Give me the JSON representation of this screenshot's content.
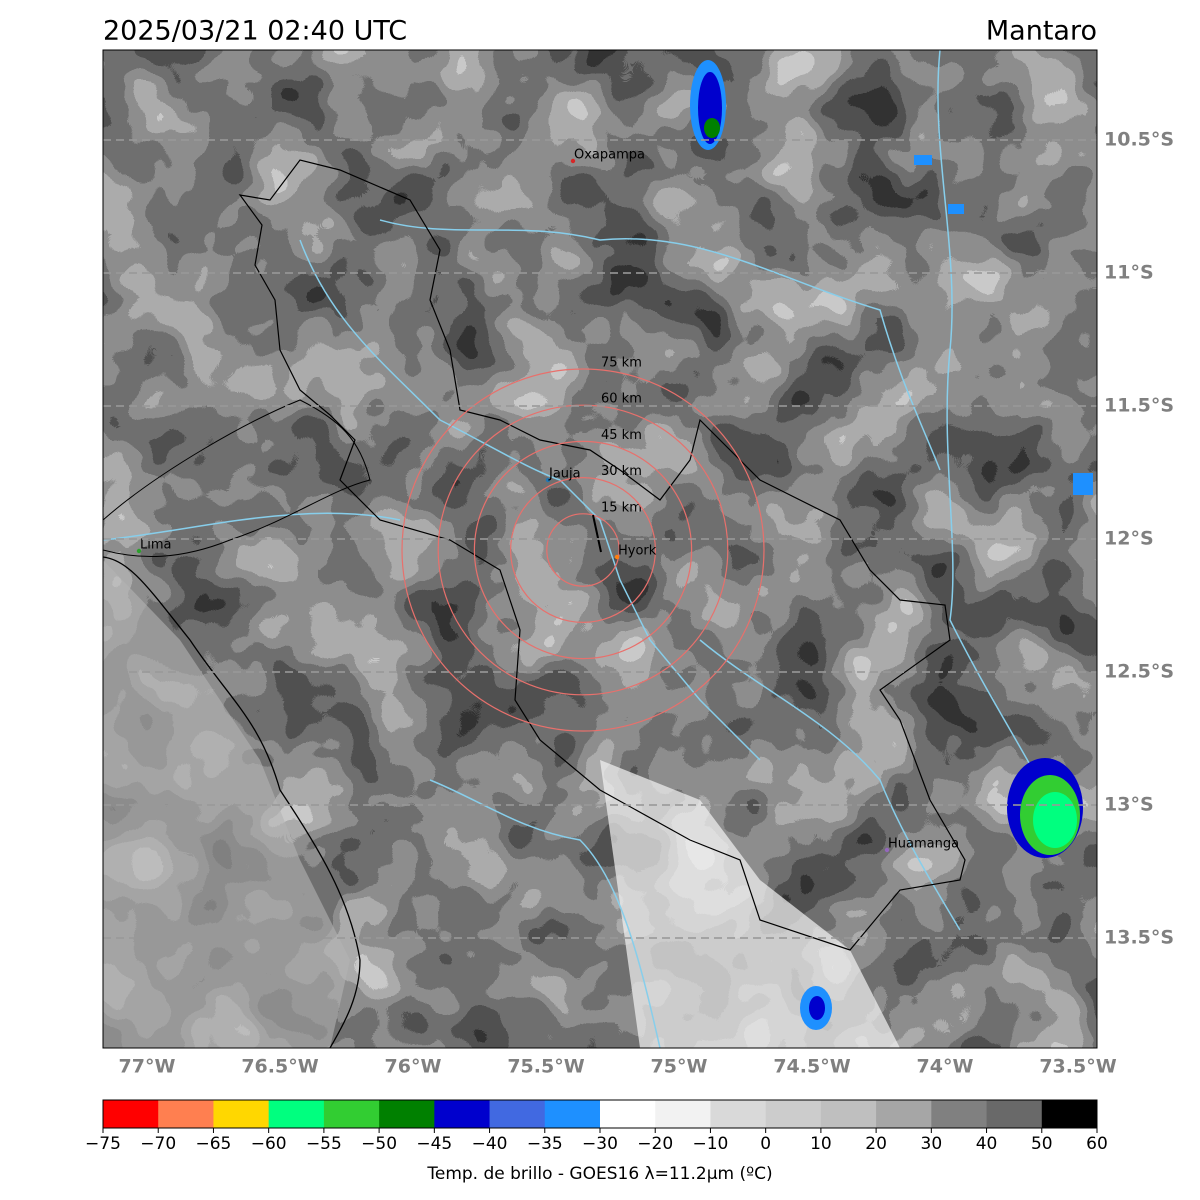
{
  "header": {
    "title": "2025/03/21 02:40 UTC",
    "region": "Mantaro"
  },
  "map": {
    "lat_ticks": [
      {
        "value": -10.5,
        "label": "10.5°S"
      },
      {
        "value": -11,
        "label": "11°S"
      },
      {
        "value": -11.5,
        "label": "11.5°S"
      },
      {
        "value": -12,
        "label": "12°S"
      },
      {
        "value": -12.5,
        "label": "12.5°S"
      },
      {
        "value": -13,
        "label": "13°S"
      },
      {
        "value": -13.5,
        "label": "13.5°S"
      }
    ],
    "lon_ticks": [
      {
        "value": -77,
        "label": "77°W"
      },
      {
        "value": -76.5,
        "label": "76.5°W"
      },
      {
        "value": -76,
        "label": "76°W"
      },
      {
        "value": -75.5,
        "label": "75.5°W"
      },
      {
        "value": -75,
        "label": "75°W"
      },
      {
        "value": -74.5,
        "label": "74.5°W"
      },
      {
        "value": -74,
        "label": "74°W"
      },
      {
        "value": -73.5,
        "label": "73.5°W"
      }
    ],
    "places": [
      "Oxapampa",
      "Jauja",
      "Lima",
      "Hyork",
      "Huamanga"
    ],
    "rings": [
      "15 km",
      "30 km",
      "45 km",
      "60 km",
      "75 km"
    ]
  },
  "colorbar": {
    "ticks": [
      {
        "value": -75,
        "label": "−75"
      },
      {
        "value": -70,
        "label": "−70"
      },
      {
        "value": -65,
        "label": "−65"
      },
      {
        "value": -60,
        "label": "−60"
      },
      {
        "value": -55,
        "label": "−55"
      },
      {
        "value": -50,
        "label": "−50"
      },
      {
        "value": -45,
        "label": "−45"
      },
      {
        "value": -40,
        "label": "−40"
      },
      {
        "value": -35,
        "label": "−35"
      },
      {
        "value": -30,
        "label": "−30"
      },
      {
        "value": -20,
        "label": "−20"
      },
      {
        "value": -10,
        "label": "−10"
      },
      0,
      10,
      20,
      30,
      40,
      50,
      60
    ],
    "colors": [
      "#ff0000",
      "#ff7f50",
      "#ffd700",
      "#00ff7f",
      "#32cd32",
      "#008000",
      "#0000cd",
      "#4169e1",
      "#1e90ff",
      "#ffffff",
      "#f2f2f2",
      "#d9d9d9",
      "#cccccc",
      "#bfbfbf",
      "#a6a6a6",
      "#808080",
      "#696969",
      "#000000"
    ],
    "label": "Temp. de brillo - GOES16 λ=11.2μm (ºC)"
  }
}
